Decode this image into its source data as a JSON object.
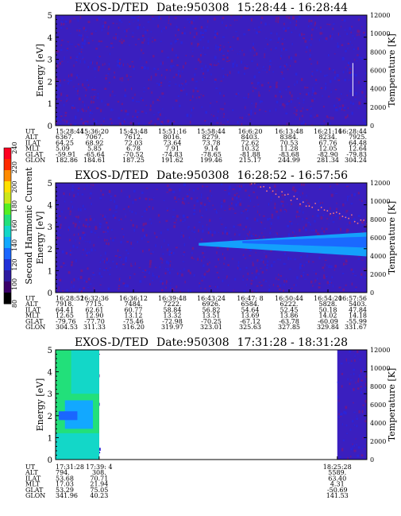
{
  "chart_data": {
    "type": "heatmap",
    "colorbar": {
      "label": "Second Harmonic Current",
      "min": 80,
      "max": 240,
      "ticks": [
        80,
        100,
        120,
        140,
        160,
        180,
        200,
        220,
        240
      ],
      "colors": [
        "#000000",
        "#3a006a",
        "#2d1aa0",
        "#2030d8",
        "#1a66ff",
        "#12a8ff",
        "#13d7c8",
        "#22e07a",
        "#55ee22",
        "#cce61a",
        "#ffe000",
        "#ff8a00",
        "#ff2a00",
        "#ff0020"
      ]
    },
    "panels": [
      {
        "title_instrument": "EXOS-D/TED",
        "title_date": "Date:950308",
        "title_time": "15:28:44 - 16:28:44",
        "ylabel_left": "Energy [eV]",
        "ylabel_right": "Temperature [K]",
        "yticks_left": [
          "0",
          "1",
          "2",
          "3",
          "4",
          "5"
        ],
        "yticks_right": [
          "0",
          "2000",
          "4000",
          "6000",
          "8000",
          "10000",
          "12000"
        ],
        "ylim_left": [
          0,
          5
        ],
        "ylim_right": [
          0,
          12000
        ],
        "data_extent": [
          0,
          1
        ],
        "features": [],
        "temperature_marker": {
          "x": 0.955,
          "k_low": 3200,
          "k_high": 6800
        },
        "eph_labels": [
          "UT",
          "ALT",
          "ILAT",
          "MLT",
          "GLAT",
          "GLON"
        ],
        "eph_cols": [
          [
            "15:28:44",
            "6367.",
            "64.25",
            "5.09",
            "-59.91",
            "182.86"
          ],
          [
            "15:36:20",
            "7067.",
            "68.92",
            "5.85",
            "-65.64",
            "184.61"
          ],
          [
            "15:43:48",
            "7612.",
            "72.03",
            "6.78",
            "-70.52",
            "187.25"
          ],
          [
            "15:51:16",
            "8016.",
            "73.64",
            "7.91",
            "-74.83",
            "191.62"
          ],
          [
            "15:58:44",
            "8279.",
            "73.78",
            "9.14",
            "-78.65",
            "199.46"
          ],
          [
            "16:6:20",
            "8403.",
            "72.62",
            "10.32",
            "-81.88",
            "215.17"
          ],
          [
            "16:13:48",
            "8384.",
            "70.53",
            "11.28",
            "-83.68",
            "244.99"
          ],
          [
            "16:21:16",
            "8234.",
            "67.76",
            "12.05",
            "-82.90",
            "281.34"
          ],
          [
            "16:28:44",
            "7925.",
            "64.48",
            "12.64",
            "-79.83",
            "304.24"
          ]
        ]
      },
      {
        "title_instrument": "EXOS-D/TED",
        "title_date": "Date:950308",
        "title_time": "16:28:52 - 16:57:56",
        "ylabel_left": "Energy [eV]",
        "ylabel_right": "Temperature [K]",
        "yticks_left": [
          "0",
          "1",
          "2",
          "3",
          "4",
          "5"
        ],
        "yticks_right": [
          "0",
          "2000",
          "4000",
          "6000",
          "8000",
          "10000",
          "12000"
        ],
        "ylim_left": [
          0,
          5
        ],
        "ylim_right": [
          0,
          12000
        ],
        "data_extent": [
          0,
          1
        ],
        "features": [
          {
            "kind": "band",
            "x0": 0.46,
            "x1": 1.0,
            "e_mid": 2.2,
            "e_half_start": 0.06,
            "e_half_end": 0.55,
            "level": 5
          },
          {
            "kind": "band",
            "x0": 0.6,
            "x1": 1.0,
            "e_mid": 2.3,
            "e_half_start": 0.05,
            "e_half_end": 0.25,
            "level": 4
          }
        ],
        "temperature_dots": {
          "x0": 0.62,
          "x1": 1.0,
          "k_start": 12000,
          "k_end": 7600
        },
        "eph_labels": [
          "UT",
          "ALT",
          "ILAT",
          "MLT",
          "GLAT",
          "GLON"
        ],
        "eph_cols": [
          [
            "16:28:52",
            "7918.",
            "64.41",
            "12.65",
            "-79.76",
            "304.53"
          ],
          [
            "16:32:36",
            "7715.",
            "62.61",
            "12.90",
            "-77.70",
            "311.33"
          ],
          [
            "16:36:12",
            "7484.",
            "60.77",
            "13.12",
            "-75.46",
            "316.20"
          ],
          [
            "16:39:48",
            "7222.",
            "58.84",
            "13.32",
            "-72.98",
            "319.97"
          ],
          [
            "16:43:24",
            "6926.",
            "56.82",
            "13.51",
            "-70.25",
            "323.01"
          ],
          [
            "16:47: 8",
            "6584.",
            "54.64",
            "13.69",
            "-67.12",
            "325.63"
          ],
          [
            "16:50:44",
            "6222.",
            "52.45",
            "13.86",
            "-63.78",
            "327.85"
          ],
          [
            "16:54:20",
            "5828.",
            "50.18",
            "14.02",
            "-60.09",
            "329.84"
          ],
          [
            "16:57:56",
            "5403.",
            "47.84",
            "14.18",
            "-55.99",
            "331.67"
          ]
        ]
      },
      {
        "title_instrument": "EXOS-D/TED",
        "title_date": "Date:950308",
        "title_time": "17:31:28 - 18:31:28",
        "ylabel_left": "Energy [eV]",
        "ylabel_right": "Temperature [K]",
        "yticks_left": [
          "0",
          "1",
          "2",
          "3",
          "4",
          "5"
        ],
        "yticks_right": [
          "0",
          "2000",
          "4000",
          "6000",
          "8000",
          "10000",
          "12000"
        ],
        "ylim_left": [
          0,
          5
        ],
        "ylim_right": [
          0,
          12000
        ],
        "data_extent": [
          0,
          0.14
        ],
        "data_extent2": [
          0.905,
          1.0
        ],
        "features": [
          {
            "kind": "block",
            "x0": 0.0,
            "x1": 0.14,
            "e0": 0.0,
            "e1": 5.0,
            "level": 7
          },
          {
            "kind": "block",
            "x0": 0.03,
            "x1": 0.12,
            "e0": 1.4,
            "e1": 2.7,
            "level": 5
          },
          {
            "kind": "block",
            "x0": 0.01,
            "x1": 0.07,
            "e0": 1.8,
            "e1": 2.2,
            "level": 4
          },
          {
            "kind": "block",
            "x0": 0.0,
            "x1": 0.14,
            "e0": 0.0,
            "e1": 1.2,
            "level": 6
          },
          {
            "kind": "block",
            "x0": 0.05,
            "x1": 0.14,
            "e0": 3.0,
            "e1": 5.0,
            "level": 6
          }
        ],
        "eph_labels": [
          "UT",
          "ALT",
          "ILAT",
          "MLT",
          "GLAT",
          "GLON"
        ],
        "eph_cols": [
          [
            "17:31:28",
            "794.",
            "53.68",
            "17.03",
            "53.29",
            "341.96"
          ],
          [
            "17:39: 4",
            "308.",
            "70.71",
            "21.94",
            "75.05",
            "40.23"
          ],
          [
            "18:25:28",
            "5589.",
            "63.40",
            "4.31",
            "-50.69",
            "141.53"
          ]
        ],
        "eph_col_pos": [
          0.0,
          0.14,
          0.905
        ]
      }
    ]
  }
}
